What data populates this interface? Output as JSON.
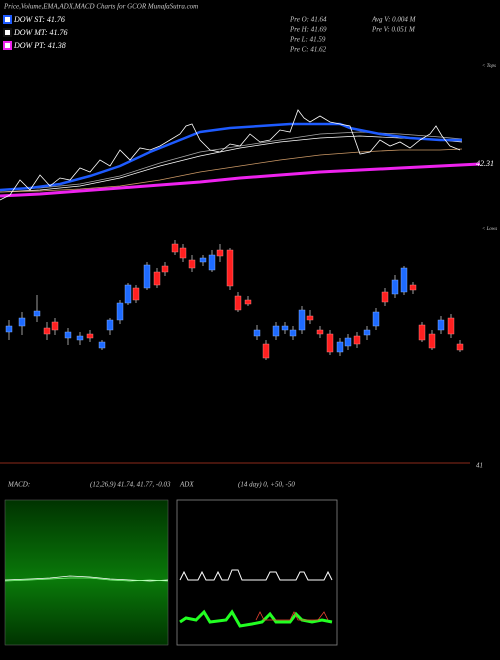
{
  "header": {
    "title": "Price,Volume,EMA,ADX,MACD Charts for GCOR MunafaSutra.com"
  },
  "legend": [
    {
      "label": "DOW ST: 41.76",
      "color": "#1e5bff"
    },
    {
      "label": "DOW MT: 41.76",
      "color": "#111111"
    },
    {
      "label": "DOW PT: 41.38",
      "color": "#ee22ee"
    }
  ],
  "quote": {
    "left": [
      "Pre   O: 41.64",
      "Pre   H: 41.69",
      "Pre   L: 41.59",
      "Pre   C: 41.62"
    ],
    "right": [
      "Avg V: 0.004  M",
      "Pre   V: 0.051 M"
    ]
  },
  "price_panel": {
    "tops": "< Tops",
    "lows": "< Lows",
    "level_label": "42.31",
    "bottom_label": "41"
  },
  "macd": {
    "label": "MACD:",
    "params": "(12,26,9) 41.74, 41.77, -0.03"
  },
  "adx": {
    "label": "ADX",
    "params": "(14  day) 0, +50, -50"
  }
}
